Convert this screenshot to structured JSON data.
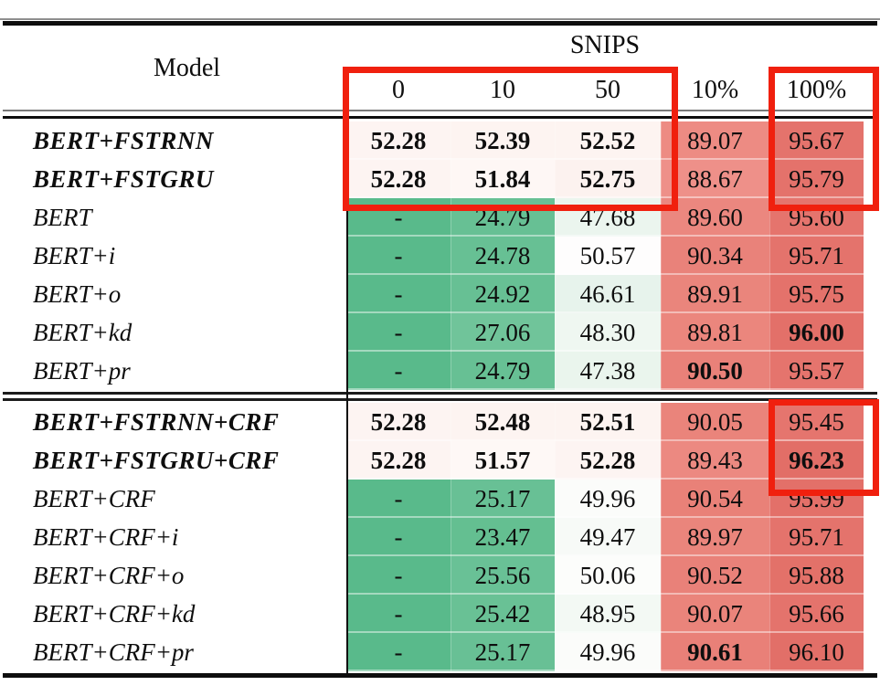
{
  "header": {
    "model_label": "Model",
    "group_label": "SNIPS",
    "columns": [
      "0",
      "10",
      "50",
      "10%",
      "100%"
    ]
  },
  "colors": {
    "annotation_red": "#f0200e",
    "green_strong": "#59ba8b",
    "salmon_10pct": "#ea857c",
    "salmon_100pct": "#e4736c"
  },
  "chart_data": {
    "type": "table",
    "title": "SNIPS results",
    "columns": [
      "Model",
      "0",
      "10",
      "50",
      "10%",
      "100%"
    ]
  },
  "table": {
    "rows": [
      {
        "model": "BERT+FSTRNN",
        "model_bold": true,
        "cells": [
          {
            "text": "52.28",
            "bold": true,
            "bg": "#fdf4f2"
          },
          {
            "text": "52.39",
            "bold": true,
            "bg": "#fdf4f1"
          },
          {
            "text": "52.52",
            "bold": true,
            "bg": "#fdf4f1"
          },
          {
            "text": "89.07",
            "bold": false,
            "bg": "#ed8b83"
          },
          {
            "text": "95.67",
            "bold": false,
            "bg": "#e4736c"
          }
        ]
      },
      {
        "model": "BERT+FSTGRU",
        "model_bold": true,
        "cells": [
          {
            "text": "52.28",
            "bold": true,
            "bg": "#fdf4f2"
          },
          {
            "text": "51.84",
            "bold": true,
            "bg": "#fef7f5"
          },
          {
            "text": "52.75",
            "bold": true,
            "bg": "#fcf2ef"
          },
          {
            "text": "88.67",
            "bold": false,
            "bg": "#ee9089"
          },
          {
            "text": "95.79",
            "bold": false,
            "bg": "#e4726b"
          }
        ]
      },
      {
        "model": "BERT",
        "model_bold": false,
        "cells": [
          {
            "text": "-",
            "bold": false,
            "bg": "#59ba8b"
          },
          {
            "text": "24.79",
            "bold": false,
            "bg": "#67c094"
          },
          {
            "text": "47.68",
            "bold": false,
            "bg": "#ebf5ee"
          },
          {
            "text": "89.60",
            "bold": false,
            "bg": "#eb877f"
          },
          {
            "text": "95.60",
            "bold": false,
            "bg": "#e5746d"
          }
        ]
      },
      {
        "model": "BERT+i",
        "model_bold": false,
        "cells": [
          {
            "text": "-",
            "bold": false,
            "bg": "#59ba8b"
          },
          {
            "text": "24.78",
            "bold": false,
            "bg": "#67c094"
          },
          {
            "text": "50.57",
            "bold": false,
            "bg": "#fefdfd"
          },
          {
            "text": "90.34",
            "bold": false,
            "bg": "#e9827a"
          },
          {
            "text": "95.71",
            "bold": false,
            "bg": "#e4736c"
          }
        ]
      },
      {
        "model": "BERT+o",
        "model_bold": false,
        "cells": [
          {
            "text": "-",
            "bold": false,
            "bg": "#59ba8b"
          },
          {
            "text": "24.92",
            "bold": false,
            "bg": "#67c094"
          },
          {
            "text": "46.61",
            "bold": false,
            "bg": "#e7f3ec"
          },
          {
            "text": "89.91",
            "bold": false,
            "bg": "#ea857c"
          },
          {
            "text": "95.75",
            "bold": false,
            "bg": "#e4726b"
          }
        ]
      },
      {
        "model": "BERT+kd",
        "model_bold": false,
        "cells": [
          {
            "text": "-",
            "bold": false,
            "bg": "#59ba8b"
          },
          {
            "text": "27.06",
            "bold": false,
            "bg": "#70c49a"
          },
          {
            "text": "48.30",
            "bold": false,
            "bg": "#eff7f1"
          },
          {
            "text": "89.81",
            "bold": false,
            "bg": "#eb867d"
          },
          {
            "text": "96.00",
            "bold": true,
            "bg": "#e37069"
          }
        ]
      },
      {
        "model": "BERT+pr",
        "model_bold": false,
        "cells": [
          {
            "text": "-",
            "bold": false,
            "bg": "#59ba8b"
          },
          {
            "text": "24.79",
            "bold": false,
            "bg": "#67c094"
          },
          {
            "text": "47.38",
            "bold": false,
            "bg": "#eaf5ed"
          },
          {
            "text": "90.50",
            "bold": true,
            "bg": "#e98179"
          },
          {
            "text": "95.57",
            "bold": false,
            "bg": "#e5746d"
          }
        ]
      },
      {
        "model": "BERT+FSTRNN+CRF",
        "model_bold": true,
        "cells": [
          {
            "text": "52.28",
            "bold": true,
            "bg": "#fdf4f2"
          },
          {
            "text": "52.48",
            "bold": true,
            "bg": "#fdf4f1"
          },
          {
            "text": "52.51",
            "bold": true,
            "bg": "#fdf4f1"
          },
          {
            "text": "90.05",
            "bold": false,
            "bg": "#ea847b"
          },
          {
            "text": "95.45",
            "bold": false,
            "bg": "#e5756e"
          }
        ]
      },
      {
        "model": "BERT+FSTGRU+CRF",
        "model_bold": true,
        "cells": [
          {
            "text": "52.28",
            "bold": true,
            "bg": "#fdf4f2"
          },
          {
            "text": "51.57",
            "bold": true,
            "bg": "#fef8f6"
          },
          {
            "text": "52.28",
            "bold": true,
            "bg": "#fdf4f2"
          },
          {
            "text": "89.43",
            "bold": false,
            "bg": "#ec8981"
          },
          {
            "text": "96.23",
            "bold": true,
            "bg": "#e26e67"
          }
        ]
      },
      {
        "model": "BERT+CRF",
        "model_bold": false,
        "cells": [
          {
            "text": "-",
            "bold": false,
            "bg": "#59ba8b"
          },
          {
            "text": "25.17",
            "bold": false,
            "bg": "#68c095"
          },
          {
            "text": "49.96",
            "bold": false,
            "bg": "#fbfcfa"
          },
          {
            "text": "90.54",
            "bold": false,
            "bg": "#e98178"
          },
          {
            "text": "95.99",
            "bold": false,
            "bg": "#e37069"
          }
        ]
      },
      {
        "model": "BERT+CRF+i",
        "model_bold": false,
        "cells": [
          {
            "text": "-",
            "bold": false,
            "bg": "#59ba8b"
          },
          {
            "text": "23.47",
            "bold": false,
            "bg": "#64bf91"
          },
          {
            "text": "49.47",
            "bold": false,
            "bg": "#f7faf7"
          },
          {
            "text": "89.97",
            "bold": false,
            "bg": "#ea857c"
          },
          {
            "text": "95.71",
            "bold": false,
            "bg": "#e4736c"
          }
        ]
      },
      {
        "model": "BERT+CRF+o",
        "model_bold": false,
        "cells": [
          {
            "text": "-",
            "bold": false,
            "bg": "#59ba8b"
          },
          {
            "text": "25.56",
            "bold": false,
            "bg": "#69c196"
          },
          {
            "text": "50.06",
            "bold": false,
            "bg": "#fcfdfb"
          },
          {
            "text": "90.52",
            "bold": false,
            "bg": "#e98179"
          },
          {
            "text": "95.88",
            "bold": false,
            "bg": "#e37169"
          }
        ]
      },
      {
        "model": "BERT+CRF+kd",
        "model_bold": false,
        "cells": [
          {
            "text": "-",
            "bold": false,
            "bg": "#59ba8b"
          },
          {
            "text": "25.42",
            "bold": false,
            "bg": "#69c195"
          },
          {
            "text": "48.95",
            "bold": false,
            "bg": "#f3f9f4"
          },
          {
            "text": "90.07",
            "bold": false,
            "bg": "#ea847b"
          },
          {
            "text": "95.66",
            "bold": false,
            "bg": "#e4736c"
          }
        ]
      },
      {
        "model": "BERT+CRF+pr",
        "model_bold": false,
        "cells": [
          {
            "text": "-",
            "bold": false,
            "bg": "#59ba8b"
          },
          {
            "text": "25.17",
            "bold": false,
            "bg": "#68c095"
          },
          {
            "text": "49.96",
            "bold": false,
            "bg": "#fbfcfa"
          },
          {
            "text": "90.61",
            "bold": true,
            "bg": "#e98078"
          },
          {
            "text": "96.10",
            "bold": false,
            "bg": "#e26f68"
          }
        ]
      }
    ]
  }
}
